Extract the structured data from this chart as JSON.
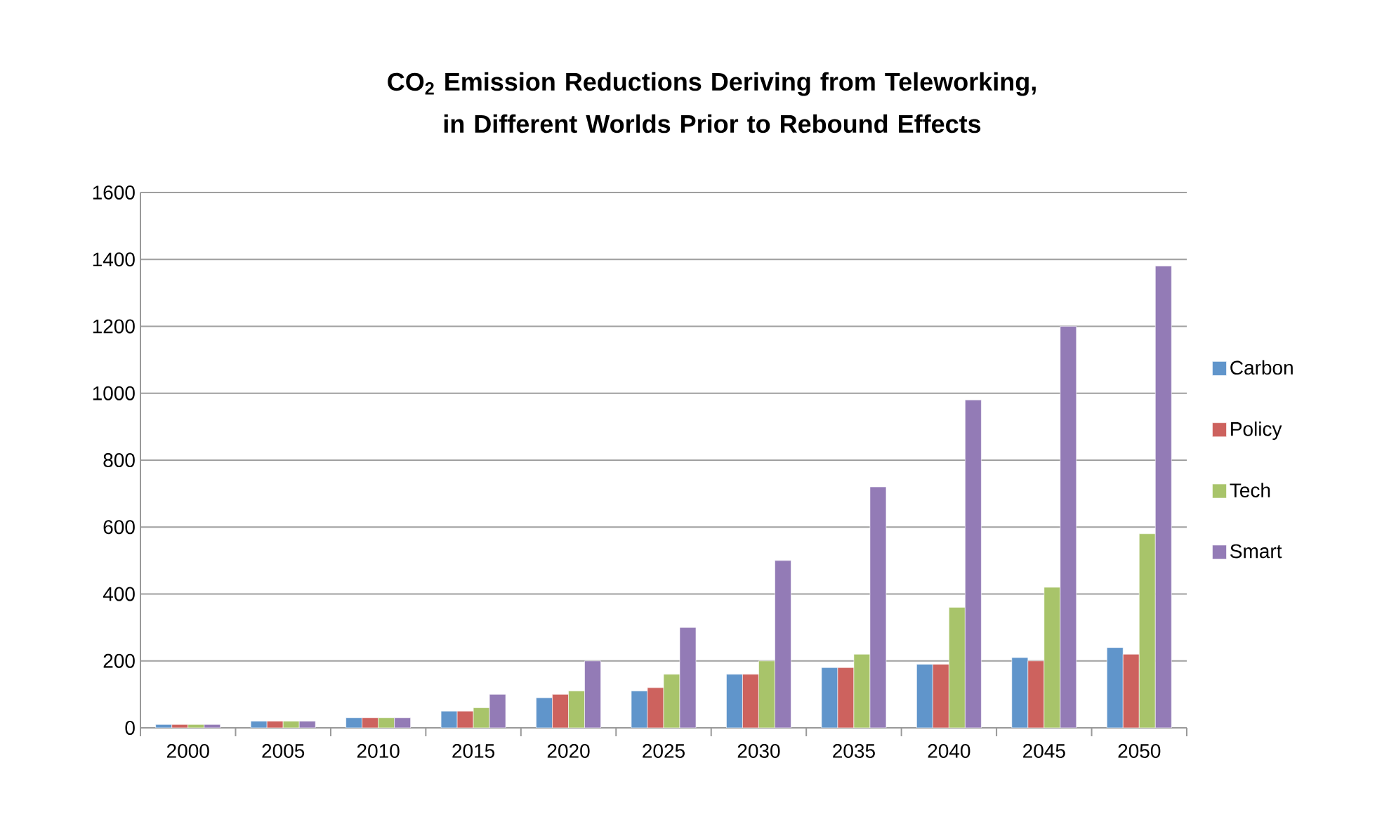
{
  "chart_data": {
    "type": "bar",
    "title": "CO$_{2}$ Emission Reductions Deriving from Teleworking, in Different Worlds Prior to Rebound Effects",
    "categories": [
      "2000",
      "2005",
      "2010",
      "2015",
      "2020",
      "2025",
      "2030",
      "2035",
      "2040",
      "2045",
      "2050"
    ],
    "series": [
      {
        "name": "Carbon",
        "color": "#6095cb",
        "values": [
          10,
          20,
          30,
          50,
          90,
          110,
          160,
          180,
          190,
          210,
          240
        ]
      },
      {
        "name": "Policy",
        "color": "#cd625e",
        "values": [
          10,
          20,
          30,
          50,
          100,
          120,
          160,
          180,
          190,
          200,
          220
        ]
      },
      {
        "name": "Tech",
        "color": "#a8c46a",
        "values": [
          10,
          20,
          30,
          60,
          110,
          160,
          200,
          220,
          360,
          420,
          580
        ]
      },
      {
        "name": "Smart",
        "color": "#937bb6",
        "values": [
          10,
          20,
          30,
          100,
          200,
          300,
          500,
          720,
          980,
          1200,
          1380
        ]
      }
    ],
    "ylim": [
      0,
      1600
    ],
    "yticks": [
      0,
      200,
      400,
      600,
      800,
      1000,
      1200,
      1400,
      1600
    ],
    "grid": "y",
    "legend": "right"
  }
}
